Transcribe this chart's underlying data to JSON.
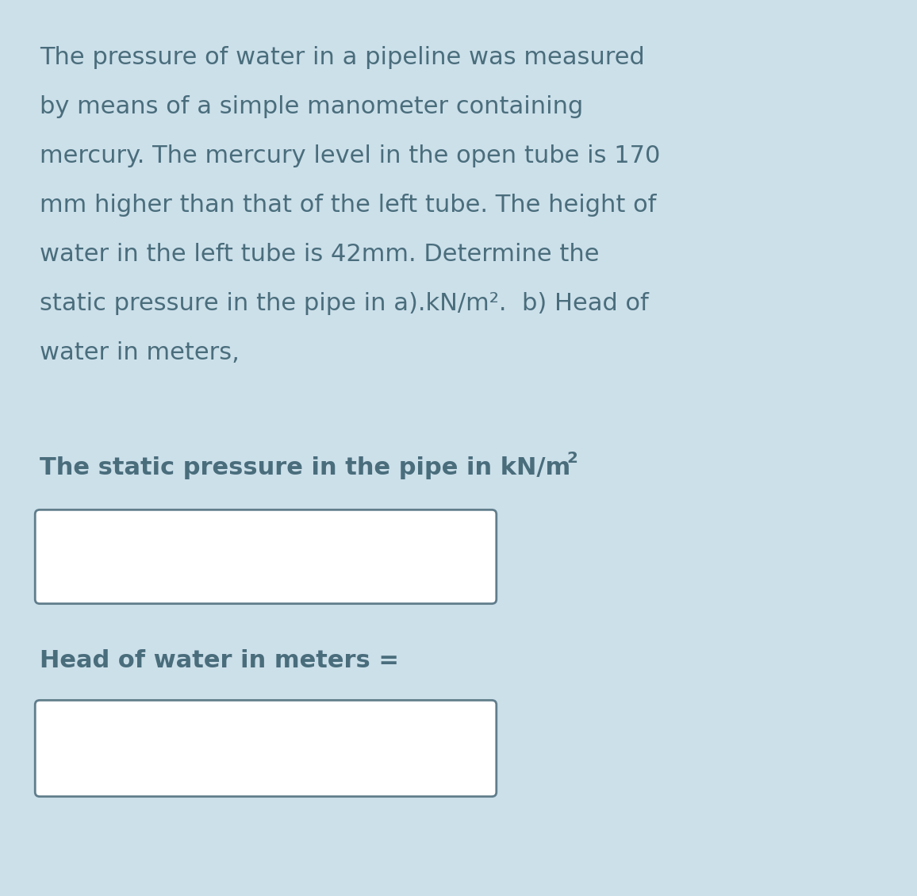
{
  "background_color": "#cce0ea",
  "text_color": "#4a6d7c",
  "problem_text_lines": [
    "The pressure of water in a pipeline was measured",
    "by means of a simple manometer containing",
    "mercury. The mercury level in the open tube is 170",
    "mm higher than that of the left tube. The height of",
    "water in the left tube is 42mm. Determine the",
    "static pressure in the pipe in a).kN/m².  b) Head of",
    "water in meters,"
  ],
  "label1_normal": "The static pressure in the pipe in kN/m",
  "label1_superscript": "2",
  "label2": "Head of water in meters =",
  "box_fill_color": "#ffffff",
  "box_edge_color": "#607d8b",
  "text_fontsize": 22,
  "label_fontsize": 22,
  "fig_width": 11.56,
  "fig_height": 11.29,
  "dpi": 100
}
